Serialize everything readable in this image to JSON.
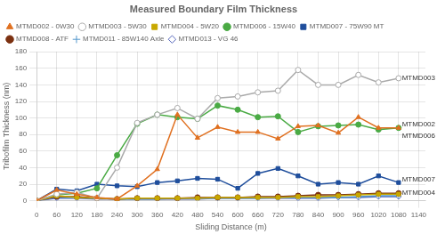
{
  "chart_data": {
    "type": "line",
    "title": "Measured Boundary Film Thickness",
    "xlabel": "Sliding Distance (m)",
    "ylabel": "Tribofilm Thickness (nm)",
    "x": [
      0,
      60,
      120,
      180,
      240,
      300,
      360,
      420,
      480,
      540,
      600,
      660,
      720,
      780,
      840,
      900,
      960,
      1020,
      1080
    ],
    "xlim": [
      0,
      1160
    ],
    "xticks": [
      0,
      60,
      120,
      180,
      240,
      300,
      360,
      420,
      480,
      540,
      600,
      660,
      720,
      780,
      840,
      900,
      960,
      1020,
      1080,
      1140
    ],
    "ylim": [
      0,
      180
    ],
    "yticks": [
      0,
      20,
      40,
      60,
      80,
      100,
      120,
      140,
      160,
      180
    ],
    "grid": true,
    "legend": "upper left",
    "series": [
      {
        "name": "MTMD002 - 0W30",
        "color": "#e07020",
        "marker": "triangle",
        "values": [
          0,
          13,
          8,
          4,
          2,
          18,
          38,
          104,
          76,
          89,
          83,
          83,
          75,
          90,
          91,
          82,
          101,
          88,
          88
        ]
      },
      {
        "name": "MTMD003 - 5W30",
        "color": "#aaaaaa",
        "marker": "circle_open",
        "values": [
          0,
          8,
          10,
          3,
          40,
          94,
          104,
          112,
          99,
          124,
          126,
          131,
          133,
          158,
          140,
          140,
          152,
          143,
          148
        ]
      },
      {
        "name": "MTMD004 - 5W20",
        "color": "#c8a800",
        "marker": "square",
        "values": [
          0,
          6,
          4,
          3,
          2,
          3,
          3,
          3,
          3,
          4,
          4,
          4,
          4,
          5,
          5,
          6,
          7,
          8,
          8
        ]
      },
      {
        "name": "MTMD006 - 15W40",
        "color": "#4aaa44",
        "marker": "circle",
        "values": [
          0,
          7,
          9,
          15,
          55,
          93,
          104,
          101,
          99,
          115,
          110,
          101,
          102,
          83,
          90,
          91,
          92,
          86,
          88
        ]
      },
      {
        "name": "MTMD007 - 75W90 MT",
        "color": "#1f4e9c",
        "marker": "square",
        "values": [
          0,
          14,
          12,
          20,
          18,
          17,
          22,
          24,
          27,
          26,
          15,
          33,
          39,
          30,
          20,
          22,
          20,
          30,
          22
        ]
      },
      {
        "name": "MTMD008 - ATF",
        "color": "#7b3010",
        "marker": "circle",
        "values": [
          0,
          5,
          5,
          3,
          2,
          3,
          3,
          3,
          4,
          4,
          4,
          5,
          5,
          6,
          7,
          7,
          8,
          9,
          9
        ]
      },
      {
        "name": "MTMD011 - 85W140 Axle",
        "color": "#5599cc",
        "marker": "plus",
        "values": [
          0,
          4,
          4,
          3,
          2,
          2,
          2,
          3,
          3,
          3,
          3,
          3,
          4,
          4,
          4,
          4,
          5,
          6,
          6
        ]
      },
      {
        "name": "MTMD013 - VG 46",
        "color": "#5566bb",
        "marker": "diamond_open",
        "values": [
          0,
          3,
          3,
          2,
          2,
          2,
          2,
          2,
          2,
          3,
          3,
          3,
          3,
          3,
          3,
          4,
          4,
          5,
          5
        ]
      }
    ],
    "annotations": [
      {
        "text": "MTMD003",
        "x": 1090,
        "y": 148
      },
      {
        "text": "MTMD002",
        "x": 1090,
        "y": 92
      },
      {
        "text": "MTMD006",
        "x": 1090,
        "y": 78
      },
      {
        "text": "MTMD007",
        "x": 1090,
        "y": 26
      },
      {
        "text": "MTMD004",
        "x": 1090,
        "y": 10
      }
    ]
  }
}
